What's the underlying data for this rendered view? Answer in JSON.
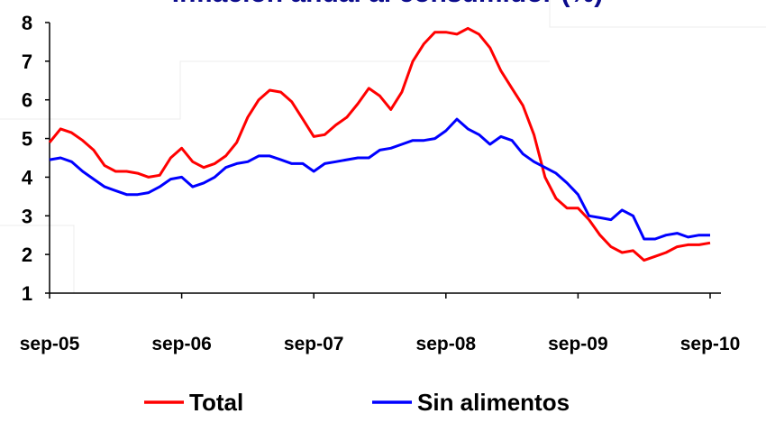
{
  "chart_data": {
    "type": "line",
    "title": "Inflación anual al consumidor (%)",
    "categories": [
      "sep-05",
      null,
      null,
      null,
      null,
      null,
      null,
      null,
      null,
      null,
      null,
      null,
      "sep-06",
      null,
      null,
      null,
      null,
      null,
      null,
      null,
      null,
      null,
      null,
      null,
      "sep-07",
      null,
      null,
      null,
      null,
      null,
      null,
      null,
      null,
      null,
      null,
      null,
      "sep-08",
      null,
      null,
      null,
      null,
      null,
      null,
      null,
      null,
      null,
      null,
      null,
      "sep-09",
      null,
      null,
      null,
      null,
      null,
      null,
      null,
      null,
      null,
      null,
      null,
      "sep-10"
    ],
    "series": [
      {
        "name": "Total",
        "color": "#ff0000",
        "values": [
          4.9,
          5.25,
          5.15,
          4.95,
          4.7,
          4.3,
          4.15,
          4.15,
          4.1,
          4.0,
          4.05,
          4.5,
          4.75,
          4.4,
          4.25,
          4.35,
          4.55,
          4.9,
          5.55,
          6.0,
          6.25,
          6.2,
          5.95,
          5.5,
          5.05,
          5.1,
          5.35,
          5.55,
          5.9,
          6.3,
          6.1,
          5.75,
          6.2,
          7.0,
          7.45,
          7.75,
          7.75,
          7.7,
          7.85,
          7.7,
          7.35,
          6.75,
          6.3,
          5.85,
          5.1,
          4.0,
          3.45,
          3.2,
          3.2,
          2.9,
          2.5,
          2.2,
          2.05,
          2.1,
          1.85,
          1.95,
          2.05,
          2.2,
          2.25,
          2.25,
          2.3
        ]
      },
      {
        "name": "Sin alimentos",
        "color": "#0000ff",
        "values": [
          4.45,
          4.5,
          4.4,
          4.15,
          3.95,
          3.75,
          3.65,
          3.55,
          3.55,
          3.6,
          3.75,
          3.95,
          4.0,
          3.75,
          3.85,
          4.0,
          4.25,
          4.35,
          4.4,
          4.55,
          4.55,
          4.45,
          4.35,
          4.35,
          4.15,
          4.35,
          4.4,
          4.45,
          4.5,
          4.5,
          4.7,
          4.75,
          4.85,
          4.95,
          4.95,
          5.0,
          5.2,
          5.5,
          5.25,
          5.1,
          4.85,
          5.05,
          4.95,
          4.6,
          4.4,
          4.25,
          4.1,
          3.85,
          3.55,
          3.0,
          2.95,
          2.9,
          3.15,
          3.0,
          2.4,
          2.4,
          2.5,
          2.55,
          2.45,
          2.5,
          2.5
        ]
      }
    ],
    "ylim": [
      1,
      8
    ],
    "yticks": [
      1,
      2,
      3,
      4,
      5,
      6,
      7,
      8
    ],
    "legend": "bottom"
  }
}
